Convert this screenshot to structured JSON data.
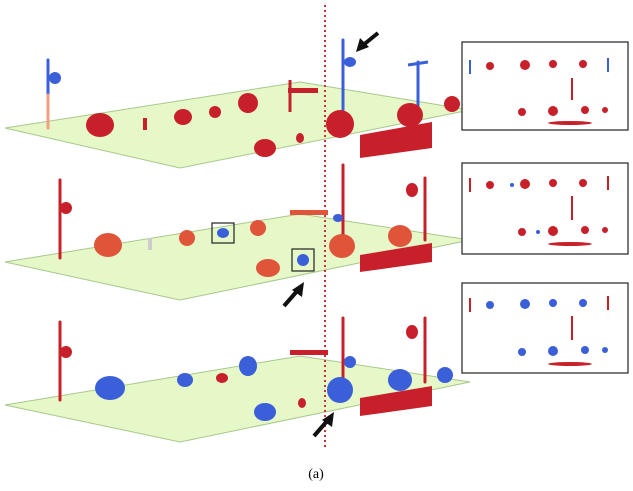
{
  "caption": "(a)"
}
